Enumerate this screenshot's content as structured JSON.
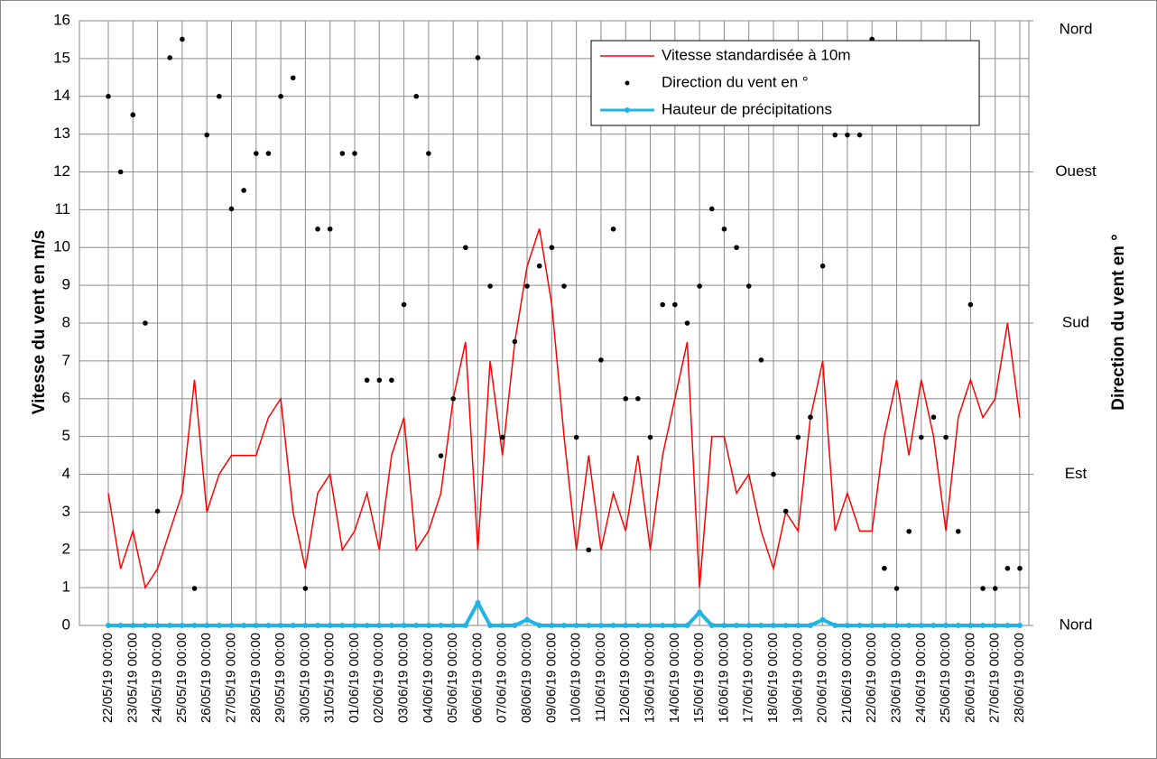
{
  "chart_data": {
    "type": "line",
    "ylabel": "Vitesse du vent en m/s",
    "y2label": "Direction du vent en °",
    "ylim": [
      0,
      16
    ],
    "yticks": [
      0,
      1,
      2,
      3,
      4,
      5,
      6,
      7,
      8,
      9,
      10,
      11,
      12,
      13,
      14,
      15,
      16
    ],
    "y2lim": [
      0,
      360
    ],
    "y2ticks": [
      {
        "value": 0,
        "label": "Nord"
      },
      {
        "value": 90,
        "label": "Est"
      },
      {
        "value": 180,
        "label": "Sud"
      },
      {
        "value": 270,
        "label": "Ouest"
      },
      {
        "value": 360,
        "label": "Nord"
      }
    ],
    "grid": true,
    "legend": "upper right",
    "xticks": [
      "22/05/19 00:00",
      "23/05/19 00:00",
      "24/05/19 00:00",
      "25/05/19 00:00",
      "26/05/19 00:00",
      "27/05/19 00:00",
      "28/05/19 00:00",
      "29/05/19 00:00",
      "30/05/19 00:00",
      "31/05/19 00:00",
      "01/06/19 00:00",
      "02/06/19 00:00",
      "03/06/19 00:00",
      "04/06/19 00:00",
      "05/06/19 00:00",
      "06/06/19 00:00",
      "07/06/19 00:00",
      "08/06/19 00:00",
      "09/06/19 00:00",
      "10/06/19 00:00",
      "11/06/19 00:00",
      "12/06/19 00:00",
      "13/06/19 00:00",
      "14/06/19 00:00",
      "15/06/19 00:00",
      "16/06/19 00:00",
      "17/06/19 00:00",
      "18/06/19 00:00",
      "19/06/19 00:00",
      "20/06/19 00:00",
      "21/06/19 00:00",
      "22/06/19 00:00",
      "23/06/19 00:00",
      "24/06/19 00:00",
      "25/06/19 00:00",
      "26/06/19 00:00",
      "27/06/19 00:00",
      "28/06/19 00:00"
    ],
    "x": [
      "22/05/19 00:00",
      "22/05/19 12:00",
      "23/05/19 00:00",
      "23/05/19 12:00",
      "24/05/19 00:00",
      "24/05/19 12:00",
      "25/05/19 00:00",
      "25/05/19 12:00",
      "26/05/19 00:00",
      "26/05/19 12:00",
      "27/05/19 00:00",
      "27/05/19 12:00",
      "28/05/19 00:00",
      "28/05/19 12:00",
      "29/05/19 00:00",
      "29/05/19 12:00",
      "30/05/19 00:00",
      "30/05/19 12:00",
      "31/05/19 00:00",
      "31/05/19 12:00",
      "01/06/19 00:00",
      "01/06/19 12:00",
      "02/06/19 00:00",
      "02/06/19 12:00",
      "03/06/19 00:00",
      "03/06/19 12:00",
      "04/06/19 00:00",
      "04/06/19 12:00",
      "05/06/19 00:00",
      "05/06/19 12:00",
      "06/06/19 00:00",
      "06/06/19 12:00",
      "07/06/19 00:00",
      "07/06/19 12:00",
      "08/06/19 00:00",
      "08/06/19 12:00",
      "09/06/19 00:00",
      "09/06/19 12:00",
      "10/06/19 00:00",
      "10/06/19 12:00",
      "11/06/19 00:00",
      "11/06/19 12:00",
      "12/06/19 00:00",
      "12/06/19 12:00",
      "13/06/19 00:00",
      "13/06/19 12:00",
      "14/06/19 00:00",
      "14/06/19 12:00",
      "15/06/19 00:00",
      "15/06/19 12:00",
      "16/06/19 00:00",
      "16/06/19 12:00",
      "17/06/19 00:00",
      "17/06/19 12:00",
      "18/06/19 00:00",
      "18/06/19 12:00",
      "19/06/19 00:00",
      "19/06/19 12:00",
      "20/06/19 00:00",
      "20/06/19 12:00",
      "21/06/19 00:00",
      "21/06/19 12:00",
      "22/06/19 00:00",
      "22/06/19 12:00",
      "23/06/19 00:00",
      "23/06/19 12:00",
      "24/06/19 00:00",
      "24/06/19 12:00",
      "25/06/19 00:00",
      "25/06/19 12:00",
      "26/06/19 00:00",
      "26/06/19 12:00",
      "27/06/19 00:00",
      "27/06/19 12:00",
      "28/06/19 00:00"
    ],
    "series": [
      {
        "name": "Vitesse standardisée à 10m",
        "color": "#ff0000",
        "style": "line",
        "values": [
          3.5,
          1.5,
          2.5,
          1.0,
          1.5,
          2.5,
          3.5,
          6.5,
          3.0,
          4.0,
          4.5,
          4.5,
          4.5,
          5.5,
          6.0,
          3.0,
          1.5,
          3.5,
          4.0,
          2.0,
          2.5,
          3.5,
          2.0,
          4.5,
          5.5,
          2.0,
          2.5,
          3.5,
          6.0,
          7.5,
          2.0,
          7.0,
          4.5,
          7.5,
          9.5,
          10.5,
          8.5,
          5.0,
          2.0,
          4.5,
          2.0,
          3.5,
          2.5,
          4.5,
          2.0,
          4.5,
          6.0,
          7.5,
          1.0,
          5.0,
          5.0,
          3.5,
          4.0,
          2.5,
          1.5,
          3.0,
          2.5,
          5.5,
          7.0,
          2.5,
          3.5,
          2.5,
          2.5,
          5.0,
          6.5,
          4.5,
          6.5,
          5.0,
          2.5,
          5.5,
          6.5,
          5.5,
          6.0,
          8.0,
          5.5
        ]
      },
      {
        "name": "Direction du vent en °",
        "color": "#000000",
        "style": "dots",
        "axis": "y2",
        "values": [
          315,
          270,
          304,
          180,
          68,
          338,
          349,
          22,
          292,
          315,
          248,
          259,
          281,
          281,
          315,
          326,
          22,
          236,
          236,
          281,
          281,
          146,
          146,
          146,
          191,
          315,
          281,
          101,
          135,
          225,
          338,
          202,
          112,
          169,
          202,
          214,
          225,
          202,
          112,
          45,
          158,
          236,
          135,
          135,
          112,
          191,
          191,
          180,
          202,
          248,
          236,
          225,
          202,
          158,
          90,
          68,
          112,
          124,
          214,
          292,
          292,
          292,
          349,
          34,
          22,
          56,
          112,
          124,
          112,
          56,
          191,
          22,
          22,
          34,
          34
        ]
      },
      {
        "name": "Hauteur de précipitations",
        "color": "#1fb4e6",
        "style": "line-marker",
        "values": [
          0,
          0,
          0,
          0,
          0,
          0,
          0,
          0,
          0,
          0,
          0,
          0,
          0,
          0,
          0,
          0,
          0,
          0,
          0,
          0,
          0,
          0,
          0,
          0,
          0,
          0,
          0,
          0,
          0,
          0,
          0.6,
          0,
          0,
          0,
          0.15,
          0,
          0,
          0,
          0,
          0,
          0,
          0,
          0,
          0,
          0,
          0,
          0,
          0,
          0.35,
          0,
          0,
          0,
          0,
          0,
          0,
          0,
          0,
          0,
          0.15,
          0,
          0,
          0,
          0,
          0,
          0,
          0,
          0,
          0,
          0,
          0,
          0,
          0,
          0,
          0,
          0
        ]
      }
    ]
  }
}
